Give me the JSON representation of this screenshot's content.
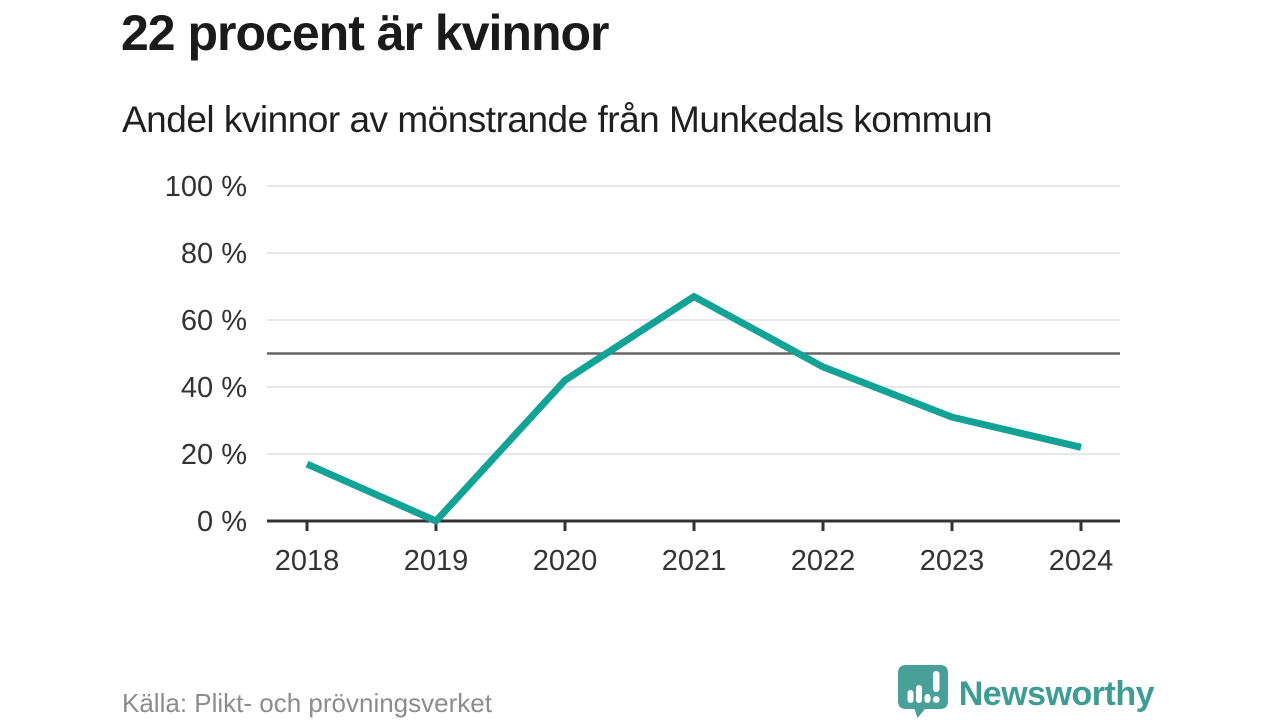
{
  "header": {
    "title": "22 procent är kvinnor",
    "subtitle": "Andel kvinnor av mönstrande från Munkedals kommun"
  },
  "footer": {
    "source": "Källa: Plikt- och prövningsverket",
    "brand_name": "Newsworthy"
  },
  "colors": {
    "line": "#12a396",
    "reference_line": "#666666",
    "grid": "#e7e7e7",
    "axis": "#333333",
    "tick_label": "#333333",
    "title": "#1a1a1a",
    "source_text": "#8c8c8c",
    "brand": "#3d9c94"
  },
  "chart_data": {
    "type": "line",
    "title": "22 procent är kvinnor",
    "subtitle": "Andel kvinnor av mönstrande från Munkedals kommun",
    "x": [
      "2018",
      "2019",
      "2020",
      "2021",
      "2022",
      "2023",
      "2024"
    ],
    "series": [
      {
        "name": "Andel kvinnor av mönstrande",
        "values": [
          17,
          0,
          42,
          67,
          46,
          31,
          22
        ]
      }
    ],
    "unit": "%",
    "ylim": [
      0,
      100
    ],
    "yticks": [
      0,
      20,
      40,
      60,
      80,
      100
    ],
    "ytick_labels": [
      "0 %",
      "20 %",
      "40 %",
      "60 %",
      "80 %",
      "100 %"
    ],
    "reference_line": 50,
    "grid": true,
    "legend": "none"
  }
}
